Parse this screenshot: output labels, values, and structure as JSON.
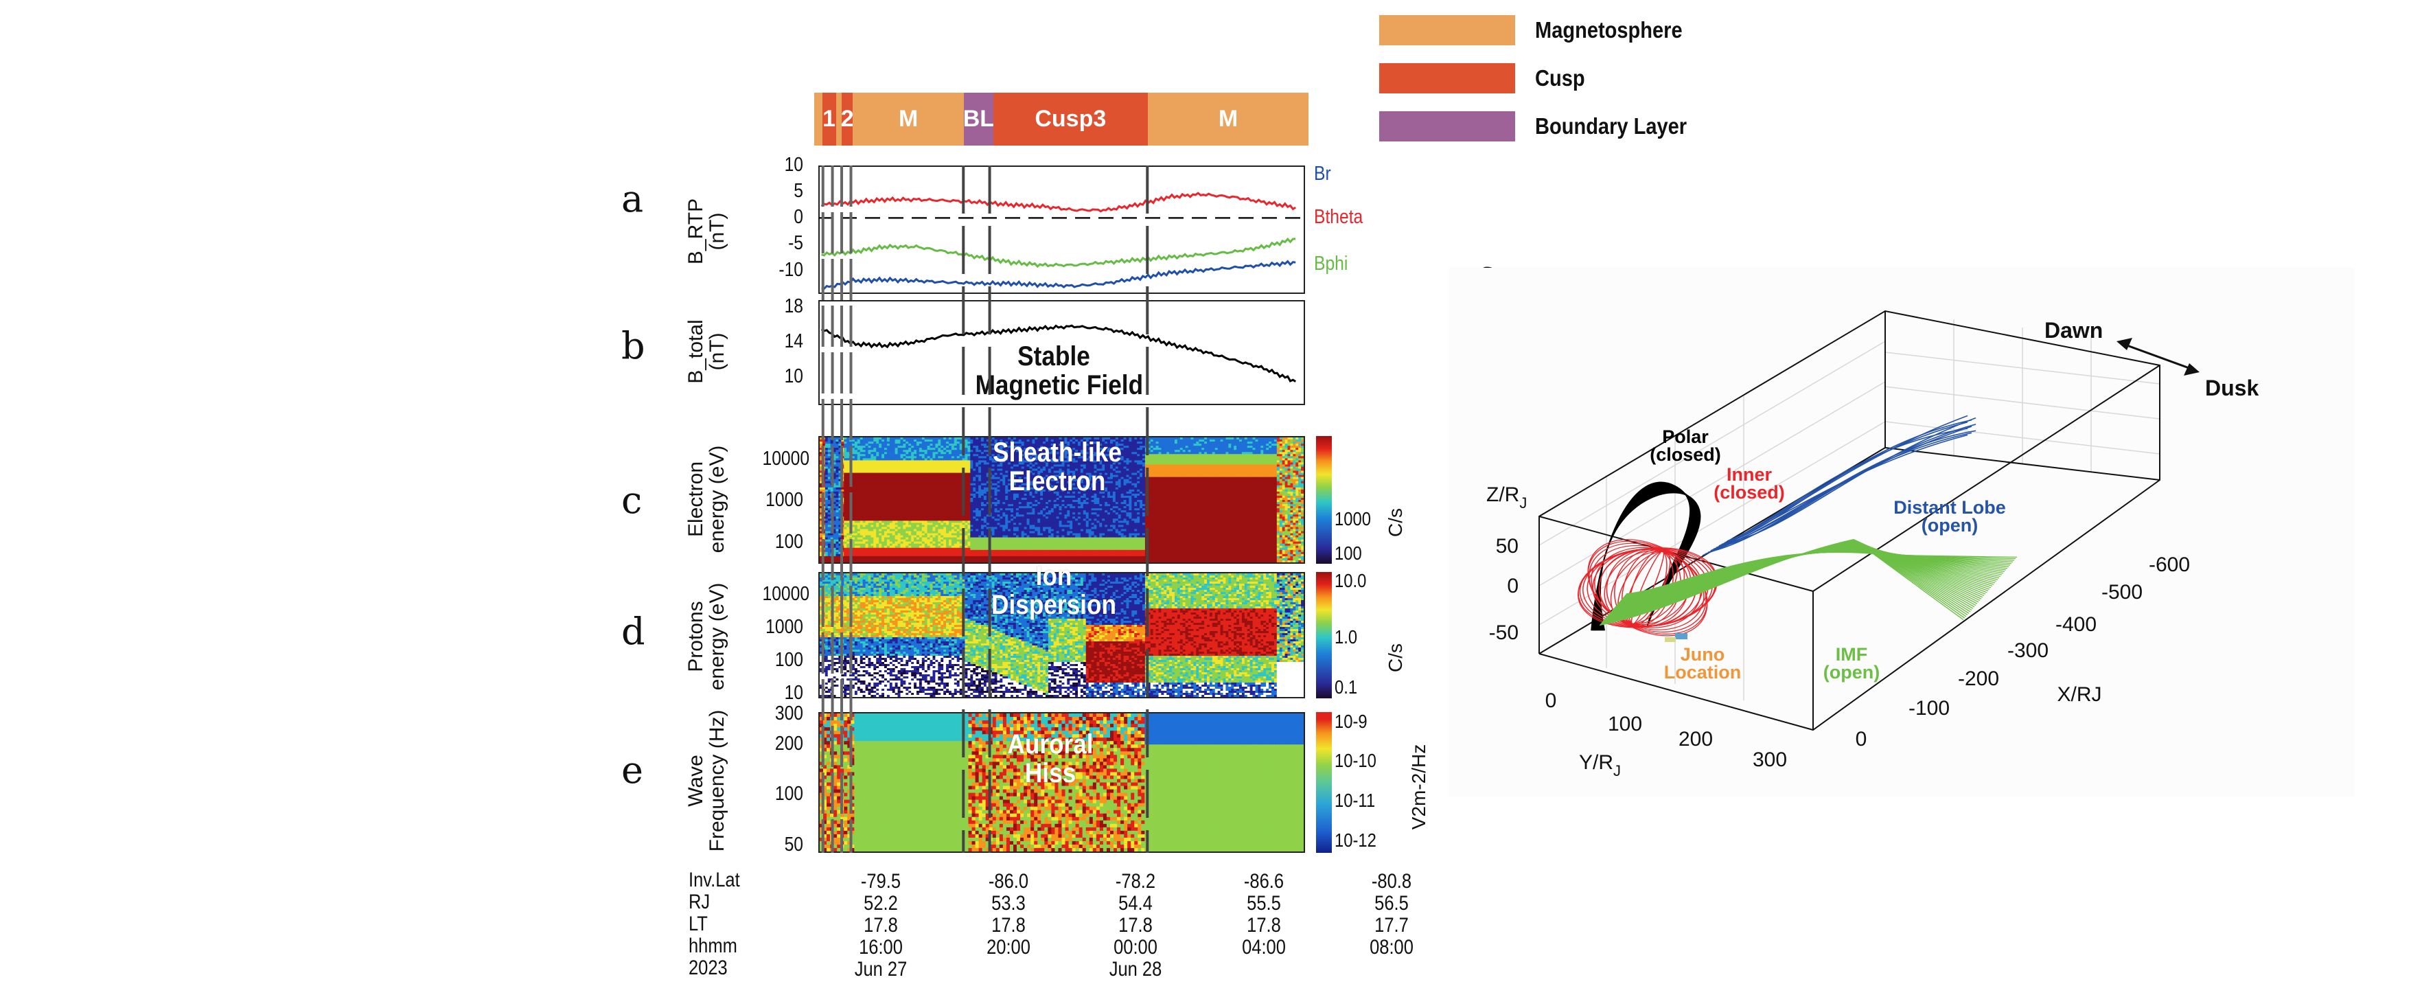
{
  "legend": [
    {
      "label": "Magnetosphere",
      "color": "#EBA25B"
    },
    {
      "label": "Cusp",
      "color": "#DE5230"
    },
    {
      "label": "Boundary Layer",
      "color": "#9E6299"
    }
  ],
  "region_bar": {
    "segments": [
      {
        "label": "",
        "type": "Magnetosphere"
      },
      {
        "label": "1",
        "type": "Cusp"
      },
      {
        "label": "",
        "type": "Magnetosphere"
      },
      {
        "label": "2",
        "type": "Cusp"
      },
      {
        "label": "M",
        "type": "Magnetosphere"
      },
      {
        "label": "BL",
        "type": "Boundary Layer"
      },
      {
        "label": "Cusp3",
        "type": "Cusp"
      },
      {
        "label": "M",
        "type": "Magnetosphere"
      }
    ]
  },
  "panel_letters": [
    "a",
    "b",
    "c",
    "d",
    "e",
    "f"
  ],
  "chart_data": [
    {
      "panel": "a",
      "type": "line",
      "ylabel": "B_RTP\n(nT)",
      "ylim": [
        -14.5,
        10
      ],
      "yticks": [
        "10",
        "5",
        "0",
        "-5",
        "-10"
      ],
      "reference_line": 0,
      "x": [
        "Jun 27 14:00",
        "Jun 27 15:00",
        "Jun 27 16:00",
        "Jun 27 17:00",
        "Jun 27 18:00",
        "Jun 27 19:00",
        "Jun 27 20:00",
        "Jun 27 21:00",
        "Jun 27 22:00",
        "Jun 27 23:00",
        "Jun 28 00:00",
        "Jun 28 01:00",
        "Jun 28 02:00",
        "Jun 28 03:00",
        "Jun 28 04:00",
        "Jun 28 05:00"
      ],
      "series": [
        {
          "name": "Br",
          "color": "#1F4FA8",
          "values": [
            -13.5,
            -12,
            -11.8,
            -12,
            -12.3,
            -12.5,
            -12.5,
            -12.8,
            -13,
            -12.5,
            -11.5,
            -10.5,
            -10,
            -9.5,
            -9,
            -8.5
          ]
        },
        {
          "name": "Btheta",
          "color": "#E8262B",
          "values": [
            2.5,
            3,
            3.5,
            3.5,
            3.3,
            3,
            2.5,
            2.2,
            1.5,
            1.5,
            2.5,
            4,
            4.5,
            4,
            3,
            2
          ]
        },
        {
          "name": "Bphi",
          "color": "#66BB44",
          "values": [
            -7,
            -6.5,
            -5.5,
            -5.5,
            -6.5,
            -7.5,
            -8.5,
            -9,
            -9,
            -8.5,
            -8,
            -7.5,
            -7,
            -6.5,
            -5.5,
            -4
          ]
        }
      ]
    },
    {
      "panel": "b",
      "type": "line",
      "ylabel": "B_total\n(nT)",
      "ylim": [
        6.8,
        18.8
      ],
      "yticks": [
        "18",
        "14",
        "10"
      ],
      "annotation": "Stable\nMagnetic Field",
      "x": [
        "Jun 27 14:00",
        "Jun 27 15:00",
        "Jun 27 16:00",
        "Jun 27 17:00",
        "Jun 27 18:00",
        "Jun 27 19:00",
        "Jun 27 20:00",
        "Jun 27 21:00",
        "Jun 27 22:00",
        "Jun 27 23:00",
        "Jun 28 00:00",
        "Jun 28 01:00",
        "Jun 28 02:00",
        "Jun 28 03:00",
        "Jun 28 04:00",
        "Jun 28 05:00"
      ],
      "series": [
        {
          "color": "#000000",
          "values": [
            15.5,
            13.8,
            13.6,
            14,
            14.8,
            15,
            15.3,
            15.6,
            15.8,
            15.5,
            14.8,
            13.8,
            13,
            12,
            11,
            9.5
          ]
        }
      ]
    },
    {
      "panel": "c",
      "type": "heatmap",
      "ylabel": "Electron\nenergy (eV)",
      "yscale": "log",
      "ylim": [
        30,
        37000
      ],
      "yticks": [
        "10000",
        "1000",
        "100"
      ],
      "colorbar": {
        "unit": "C/s",
        "ticks": [
          "1000",
          "100"
        ],
        "scale": "log"
      },
      "annotation": "Sheath-like\nElectron"
    },
    {
      "panel": "d",
      "type": "heatmap",
      "ylabel": "Protons\nenergy (eV)",
      "yscale": "log",
      "ylim": [
        7,
        50000
      ],
      "yticks": [
        "10000",
        "1000",
        "100",
        "10"
      ],
      "colorbar": {
        "unit": "C/s",
        "ticks": [
          "10.0",
          "1.0",
          "0.1"
        ],
        "scale": "log"
      },
      "annotation": "Ion\nDispersion"
    },
    {
      "panel": "e",
      "type": "heatmap",
      "ylabel": "Wave\nFrequency (Hz)",
      "yscale": "log",
      "ylim": [
        45,
        310
      ],
      "yticks": [
        "300",
        "200",
        "100",
        "50"
      ],
      "colorbar": {
        "unit": "V2m-2/Hz",
        "ticks": [
          "10-9",
          "10-10",
          "10-11",
          "10-12"
        ],
        "scale": "log"
      },
      "annotation": "Auroral\nHiss"
    }
  ],
  "x_axis_table": {
    "row_labels": [
      "Inv.Lat",
      "RJ",
      "LT",
      "hhmm",
      "2023"
    ],
    "columns": [
      {
        "Inv.Lat": "-79.5",
        "RJ": "52.2",
        "LT": "17.8",
        "hhmm": "16:00",
        "date": "Jun 27"
      },
      {
        "Inv.Lat": "-86.0",
        "RJ": "53.3",
        "LT": "17.8",
        "hhmm": "20:00",
        "date": ""
      },
      {
        "Inv.Lat": "-78.2",
        "RJ": "54.4",
        "LT": "17.8",
        "hhmm": "00:00",
        "date": "Jun 28"
      },
      {
        "Inv.Lat": "-86.6",
        "RJ": "55.5",
        "LT": "17.8",
        "hhmm": "04:00",
        "date": ""
      },
      {
        "Inv.Lat": "-80.8",
        "RJ": "56.5",
        "LT": "17.7",
        "hhmm": "08:00",
        "date": ""
      }
    ]
  },
  "panel_f": {
    "z_label": "Z/R",
    "z_label_sub": "J",
    "z_ticks": [
      "50",
      "0",
      "-50"
    ],
    "y_label": "Y/R",
    "y_label_sub": "J",
    "y_ticks": [
      "0",
      "100",
      "200",
      "300"
    ],
    "x_label": "X/RJ",
    "x_ticks": [
      "0",
      "-100",
      "-200",
      "-300",
      "-400",
      "-500",
      "-600"
    ],
    "dawn": "Dawn",
    "dusk": "Dusk",
    "field_lines": [
      {
        "label1": "Polar",
        "label2": "(closed)",
        "color": "#000000"
      },
      {
        "label1": "Inner",
        "label2": "(closed)",
        "color": "#E8262B"
      },
      {
        "label1": "Distant Lobe",
        "label2": "(open)",
        "color": "#2553A8"
      },
      {
        "label1": "IMF",
        "label2": "(open)",
        "color": "#6CBF45"
      }
    ],
    "juno": {
      "label1": "Juno",
      "label2": "Location",
      "color": "#F0963A"
    }
  }
}
